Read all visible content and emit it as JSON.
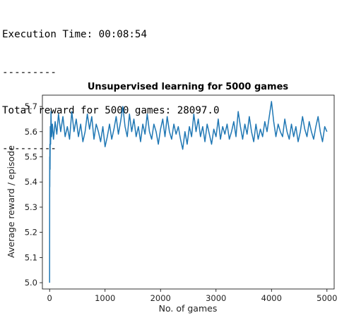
{
  "output": {
    "lines": [
      "Execution Time: 00:08:54",
      "---------",
      "Total reward for 5000 games: 28097.0",
      "---------"
    ]
  },
  "chart_data": {
    "type": "line",
    "title": "Unsupervised learning for 5000 games",
    "xlabel": "No. of games",
    "ylabel": "Average reward / episode",
    "xlim": [
      -130,
      5130
    ],
    "ylim": [
      4.975,
      5.745
    ],
    "xticks": [
      0,
      1000,
      2000,
      3000,
      4000,
      5000
    ],
    "yticks": [
      5.0,
      5.1,
      5.2,
      5.3,
      5.4,
      5.5,
      5.6,
      5.7
    ],
    "xtick_labels": [
      "0",
      "1000",
      "2000",
      "3000",
      "4000",
      "5000"
    ],
    "ytick_labels": [
      "5.0",
      "5.1",
      "5.2",
      "5.3",
      "5.4",
      "5.5",
      "5.6",
      "5.7"
    ],
    "grid": false,
    "line_color": "#1f77b4",
    "series": [
      {
        "x": [
          0,
          1,
          2,
          3,
          5,
          8,
          12,
          18,
          25,
          35,
          50,
          70,
          100,
          130,
          160,
          200,
          240,
          280,
          320,
          360,
          400,
          440,
          480,
          520,
          560,
          600,
          640,
          680,
          720,
          760,
          800,
          840,
          880,
          920,
          960,
          1000,
          1040,
          1080,
          1120,
          1160,
          1200,
          1240,
          1280,
          1320,
          1360,
          1400,
          1440,
          1480,
          1520,
          1560,
          1600,
          1640,
          1680,
          1720,
          1760,
          1800,
          1840,
          1880,
          1920,
          1960,
          2000,
          2040,
          2080,
          2120,
          2160,
          2200,
          2240,
          2280,
          2320,
          2360,
          2400,
          2440,
          2480,
          2520,
          2560,
          2600,
          2640,
          2680,
          2720,
          2760,
          2800,
          2840,
          2880,
          2920,
          2960,
          3000,
          3040,
          3080,
          3120,
          3160,
          3200,
          3240,
          3280,
          3320,
          3360,
          3400,
          3440,
          3480,
          3520,
          3560,
          3600,
          3640,
          3680,
          3720,
          3760,
          3800,
          3840,
          3880,
          3920,
          3960,
          4000,
          4040,
          4080,
          4120,
          4160,
          4200,
          4240,
          4280,
          4320,
          4360,
          4400,
          4440,
          4480,
          4520,
          4560,
          4600,
          4640,
          4680,
          4720,
          4760,
          4800,
          4840,
          4880,
          4920,
          4960,
          5000
        ],
        "y": [
          5.0,
          5.33,
          5.5,
          5.38,
          5.55,
          5.45,
          5.62,
          5.55,
          5.68,
          5.58,
          5.63,
          5.57,
          5.64,
          5.59,
          5.67,
          5.6,
          5.66,
          5.58,
          5.62,
          5.57,
          5.68,
          5.6,
          5.65,
          5.58,
          5.63,
          5.56,
          5.6,
          5.67,
          5.61,
          5.66,
          5.57,
          5.63,
          5.6,
          5.56,
          5.62,
          5.54,
          5.58,
          5.63,
          5.57,
          5.61,
          5.66,
          5.59,
          5.64,
          5.7,
          5.62,
          5.58,
          5.67,
          5.6,
          5.65,
          5.58,
          5.62,
          5.56,
          5.63,
          5.59,
          5.67,
          5.6,
          5.57,
          5.63,
          5.6,
          5.55,
          5.61,
          5.65,
          5.58,
          5.66,
          5.6,
          5.57,
          5.63,
          5.59,
          5.62,
          5.57,
          5.53,
          5.6,
          5.55,
          5.62,
          5.58,
          5.67,
          5.6,
          5.65,
          5.58,
          5.62,
          5.56,
          5.63,
          5.59,
          5.55,
          5.61,
          5.58,
          5.65,
          5.57,
          5.62,
          5.59,
          5.63,
          5.57,
          5.6,
          5.64,
          5.58,
          5.68,
          5.62,
          5.57,
          5.63,
          5.59,
          5.66,
          5.6,
          5.56,
          5.63,
          5.57,
          5.61,
          5.58,
          5.64,
          5.6,
          5.66,
          5.72,
          5.64,
          5.58,
          5.63,
          5.6,
          5.58,
          5.65,
          5.6,
          5.57,
          5.63,
          5.58,
          5.62,
          5.56,
          5.6,
          5.66,
          5.61,
          5.58,
          5.64,
          5.6,
          5.57,
          5.62,
          5.66,
          5.6,
          5.56,
          5.62,
          5.6
        ]
      }
    ]
  }
}
